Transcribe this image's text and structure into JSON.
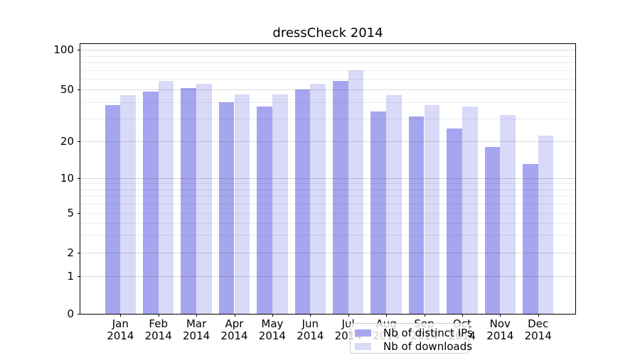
{
  "chart_data": {
    "type": "bar",
    "title": "dressCheck 2014",
    "categories": [
      "Jan",
      "Feb",
      "Mar",
      "Apr",
      "May",
      "Jun",
      "Jul",
      "Aug",
      "Sep",
      "Oct",
      "Nov",
      "Dec"
    ],
    "year_label": "2014",
    "series": [
      {
        "name": "Nb of distinct IPs",
        "color": "#a6a6f0",
        "values": [
          38,
          48,
          51,
          40,
          37,
          50,
          58,
          34,
          31,
          25,
          18,
          13
        ]
      },
      {
        "name": "Nb of downloads",
        "color": "#d9d9f8",
        "values": [
          45,
          58,
          55,
          46,
          46,
          55,
          70,
          45,
          38,
          37,
          32,
          22
        ]
      }
    ],
    "yscale": "symlog",
    "ylim": [
      0,
      115
    ],
    "yticks": [
      0,
      1,
      2,
      5,
      10,
      20,
      50,
      100
    ],
    "minor_gridlines": [
      2,
      3,
      4,
      6,
      7,
      8,
      9,
      20,
      30,
      40,
      50,
      60,
      70,
      80,
      90
    ],
    "mid_gridlines": [
      2,
      5,
      20,
      50
    ],
    "major_gridlines": [
      1,
      10,
      100
    ],
    "grid": true,
    "legend_position": "lower center"
  },
  "colors": {
    "ips_bar": "#a6a6f0",
    "downloads_bar": "#d9d9f8",
    "grid_minor": "rgba(0,0,0,0.07)",
    "grid_major": "rgba(0,0,0,0.16)",
    "axis": "#000000",
    "text": "#000000",
    "legend_bg": "rgba(255,255,255,0.8)",
    "legend_border": "#cccccc"
  }
}
